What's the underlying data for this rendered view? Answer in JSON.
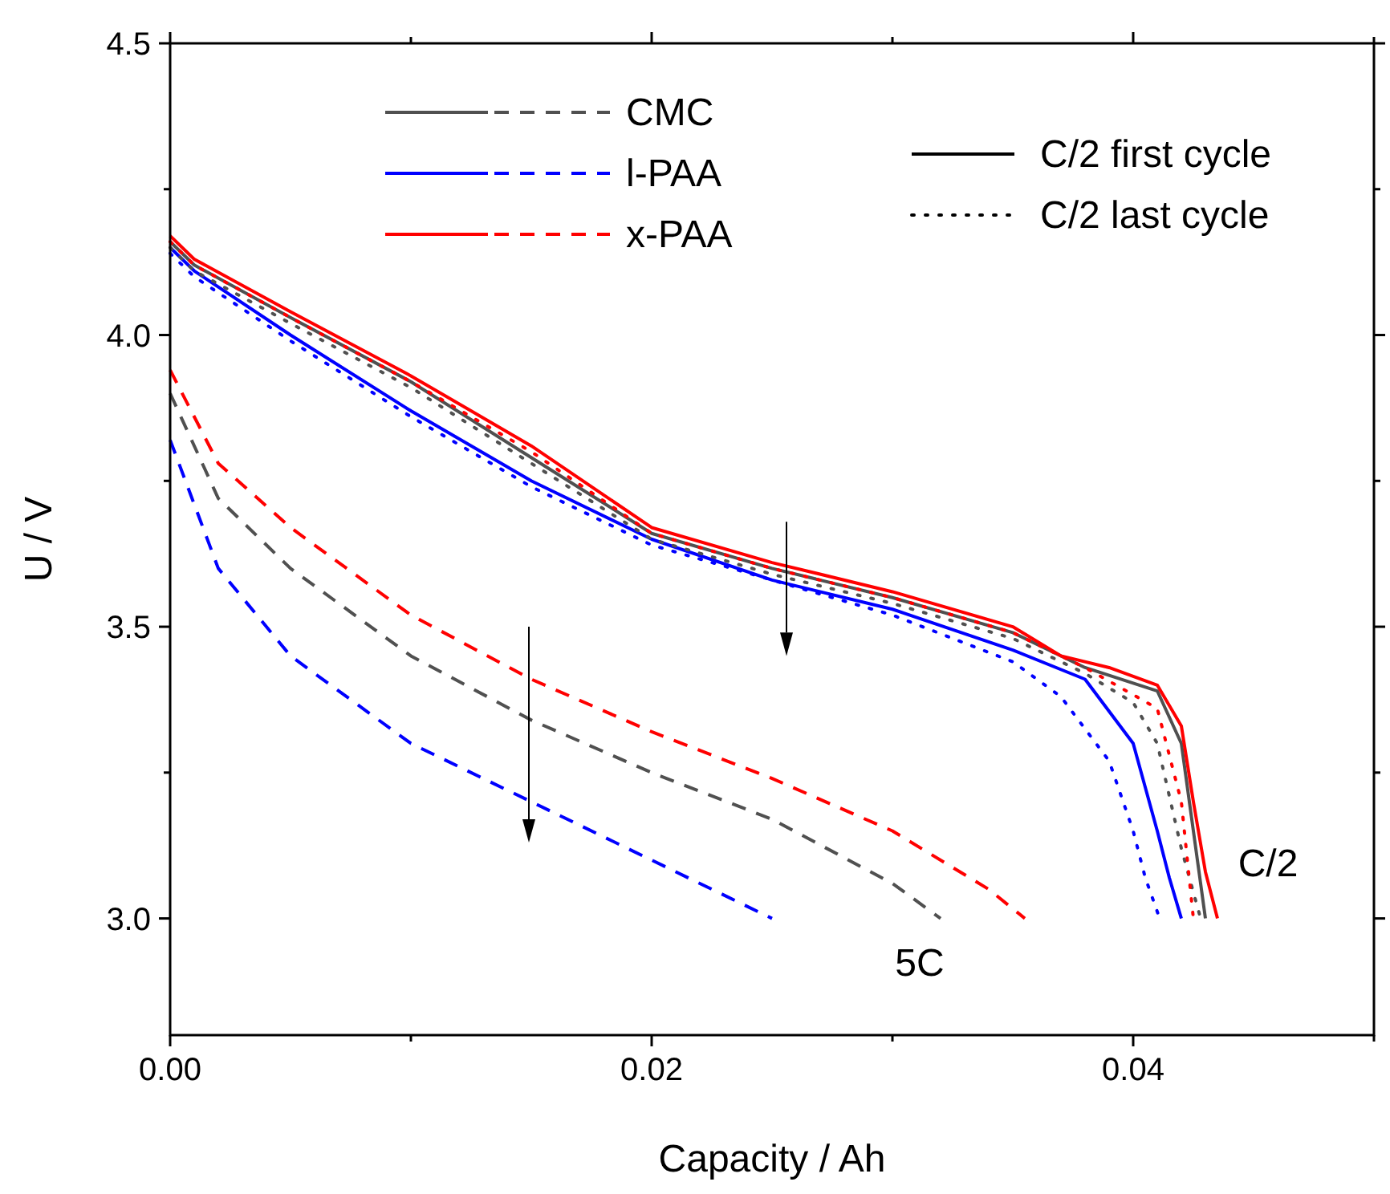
{
  "chart_data": {
    "type": "line",
    "xlabel": "Capacity / Ah",
    "ylabel": "U / V",
    "xlim": [
      0,
      0.05
    ],
    "xticks": [
      {
        "value": 0,
        "label": "0.00"
      },
      {
        "value": 0.01,
        "label": null
      },
      {
        "value": 0.02,
        "label": "0.02"
      },
      {
        "value": 0.03,
        "label": null
      },
      {
        "value": 0.04,
        "label": "0.04"
      },
      {
        "value": 0.05,
        "label": null
      }
    ],
    "ylim": [
      2.8,
      4.5
    ],
    "yticks": [
      {
        "value": 3,
        "label": "3.0"
      },
      {
        "value": 3.25,
        "label": null
      },
      {
        "value": 3.5,
        "label": "3.5"
      },
      {
        "value": 3.75,
        "label": null
      },
      {
        "value": 4,
        "label": "4.0"
      },
      {
        "value": 4.25,
        "label": null
      },
      {
        "value": 4.5,
        "label": "4.5"
      }
    ],
    "grid": false,
    "legend": "top",
    "marker": "none",
    "annotations": [
      "C/2",
      "5C"
    ],
    "series": [
      {
        "name": "CMC",
        "color": "#505050",
        "line_style": "solid",
        "x": [
          0,
          0.001,
          0.005,
          0.01,
          0.015,
          0.02,
          0.025,
          0.03,
          0.035,
          0.038,
          0.041,
          0.042,
          0.0425,
          0.043
        ],
        "values": [
          4.16,
          4.12,
          4.03,
          3.92,
          3.79,
          3.66,
          3.6,
          3.55,
          3.49,
          3.43,
          3.39,
          3.3,
          3.15,
          3.0
        ]
      },
      {
        "name": "l-PAA",
        "color": "#0000ff",
        "line_style": "solid",
        "x": [
          0,
          0.001,
          0.005,
          0.01,
          0.015,
          0.02,
          0.025,
          0.03,
          0.035,
          0.038,
          0.04,
          0.041,
          0.0415,
          0.042
        ],
        "values": [
          4.15,
          4.11,
          4.0,
          3.87,
          3.75,
          3.65,
          3.58,
          3.53,
          3.46,
          3.41,
          3.3,
          3.15,
          3.07,
          3.0
        ]
      },
      {
        "name": "x-PAA",
        "color": "#ff0000",
        "line_style": "solid",
        "x": [
          0,
          0.001,
          0.005,
          0.01,
          0.015,
          0.02,
          0.025,
          0.03,
          0.035,
          0.037,
          0.039,
          0.041,
          0.042,
          0.0425,
          0.043,
          0.0435
        ],
        "values": [
          4.17,
          4.13,
          4.04,
          3.93,
          3.81,
          3.67,
          3.61,
          3.56,
          3.5,
          3.45,
          3.43,
          3.4,
          3.33,
          3.2,
          3.08,
          3.0
        ]
      },
      {
        "color": "#505050",
        "line_style": "dotted",
        "x": [
          0,
          0.001,
          0.005,
          0.01,
          0.015,
          0.02,
          0.025,
          0.03,
          0.035,
          0.038,
          0.04,
          0.041,
          0.042,
          0.0428
        ],
        "values": [
          4.15,
          4.11,
          4.02,
          3.91,
          3.78,
          3.65,
          3.59,
          3.54,
          3.48,
          3.42,
          3.37,
          3.3,
          3.12,
          3.0
        ]
      },
      {
        "color": "#0000ff",
        "line_style": "dotted",
        "x": [
          0,
          0.001,
          0.005,
          0.01,
          0.015,
          0.02,
          0.025,
          0.03,
          0.035,
          0.037,
          0.039,
          0.04,
          0.0405,
          0.0411
        ],
        "values": [
          4.14,
          4.1,
          3.99,
          3.86,
          3.74,
          3.64,
          3.58,
          3.52,
          3.44,
          3.38,
          3.27,
          3.15,
          3.07,
          3.0
        ]
      },
      {
        "color": "#ff0000",
        "line_style": "dotted",
        "x": [
          0,
          0.001,
          0.005,
          0.01,
          0.015,
          0.02,
          0.025,
          0.03,
          0.035,
          0.038,
          0.041,
          0.042,
          0.0425
        ],
        "values": [
          4.16,
          4.12,
          4.03,
          3.92,
          3.8,
          3.66,
          3.6,
          3.55,
          3.49,
          3.43,
          3.36,
          3.2,
          3.0
        ]
      },
      {
        "color": "#505050",
        "line_style": "dashed",
        "x": [
          0,
          0.002,
          0.005,
          0.01,
          0.015,
          0.02,
          0.025,
          0.03,
          0.032
        ],
        "values": [
          3.9,
          3.72,
          3.6,
          3.45,
          3.34,
          3.25,
          3.17,
          3.06,
          3.0
        ]
      },
      {
        "color": "#0000ff",
        "line_style": "dashed",
        "x": [
          0,
          0.002,
          0.005,
          0.01,
          0.015,
          0.02,
          0.025
        ],
        "values": [
          3.82,
          3.6,
          3.45,
          3.3,
          3.2,
          3.1,
          3.0
        ]
      },
      {
        "color": "#ff0000",
        "line_style": "dashed",
        "x": [
          0,
          0.002,
          0.005,
          0.01,
          0.015,
          0.02,
          0.025,
          0.03,
          0.034,
          0.0355
        ],
        "values": [
          3.94,
          3.78,
          3.67,
          3.52,
          3.41,
          3.32,
          3.24,
          3.15,
          3.05,
          3.0
        ]
      },
      {
        "name": "C/2 first cycle",
        "color": "#000000",
        "line_style": "solid"
      },
      {
        "name": "C/2 last cycle",
        "color": "#000000",
        "line_style": "dotted"
      }
    ]
  }
}
